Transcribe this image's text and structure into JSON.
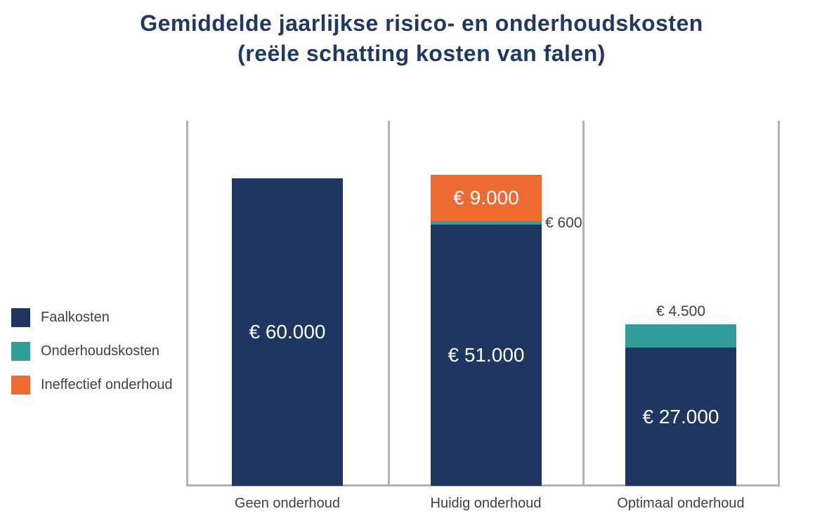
{
  "title": {
    "line1": "Gemiddelde jaarlijkse risico- en onderhoudskosten",
    "line2": "(reële schatting kosten van falen)"
  },
  "colors": {
    "background": "#FFFFFF",
    "navy": "#1F3660",
    "teal": "#329D9C",
    "orange": "#EE6A33",
    "title_navy": "#1F3864",
    "label_gray": "#404040",
    "line_gray": "#B3B3B6",
    "white_label": "#FFFFFF"
  },
  "legend": {
    "items": [
      {
        "label": "Faalkosten",
        "color": "navy"
      },
      {
        "label": "Onderhoudskosten",
        "color": "teal"
      },
      {
        "label": "Ineffectief onderhoud",
        "color": "orange"
      }
    ]
  },
  "chart_data": {
    "type": "bar",
    "stacked": true,
    "currency": "EUR",
    "title": "Gemiddelde jaarlijkse risico- en onderhoudskosten (reële schatting kosten van falen)",
    "xlabel": "",
    "ylabel": "",
    "value_axis_visible": false,
    "grid": "vertical-category-dividers",
    "legend_position": "left",
    "categories": [
      "Geen onderhoud",
      "Huidig onderhoud",
      "Optimaal onderhoud"
    ],
    "series": [
      {
        "name": "Faalkosten",
        "color": "navy",
        "values": [
          60000,
          51000,
          27000
        ]
      },
      {
        "name": "Onderhoudskosten",
        "color": "teal",
        "values": [
          0,
          600,
          4500
        ]
      },
      {
        "name": "Ineffectief onderhoud",
        "color": "orange",
        "values": [
          0,
          9000,
          0
        ]
      }
    ],
    "bars": [
      {
        "category": "Geen onderhoud",
        "total": 60000,
        "segments": [
          {
            "series": "Faalkosten",
            "value": 60000,
            "label": "€ 60.000",
            "label_position": "inside",
            "color": "navy"
          }
        ]
      },
      {
        "category": "Huidig onderhoud",
        "total": 60600,
        "segments": [
          {
            "series": "Ineffectief onderhoud",
            "value": 9000,
            "label": "€ 9.000",
            "label_position": "inside",
            "color": "orange"
          },
          {
            "series": "Onderhoudskosten",
            "value": 600,
            "label": "€ 600",
            "label_position": "right",
            "color": "teal"
          },
          {
            "series": "Faalkosten",
            "value": 51000,
            "label": "€ 51.000",
            "label_position": "inside",
            "color": "navy"
          }
        ]
      },
      {
        "category": "Optimaal onderhoud",
        "total": 31500,
        "segments": [
          {
            "series": "Onderhoudskosten",
            "value": 4500,
            "label": "€ 4.500",
            "label_position": "above",
            "color": "teal"
          },
          {
            "series": "Faalkosten",
            "value": 27000,
            "label": "€ 27.000",
            "label_position": "inside",
            "color": "navy"
          }
        ]
      }
    ]
  }
}
